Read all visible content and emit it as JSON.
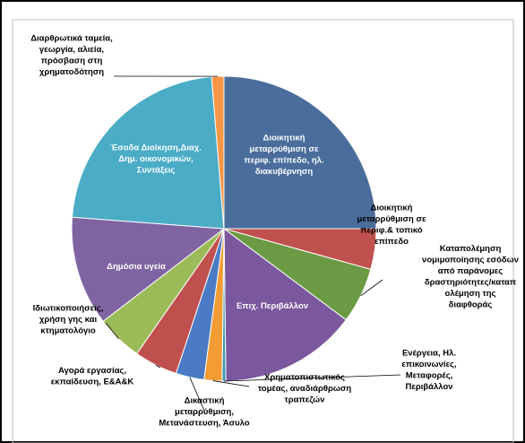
{
  "colors": {
    "background": "#ffffff",
    "frame": "#000000",
    "inner_border": "#bfbfbf",
    "slice_edge": "#ffffff",
    "leader": "#000000"
  },
  "chart_data": {
    "type": "pie",
    "start_angle_deg": 0,
    "direction": "clockwise",
    "grid": false,
    "legend": "none",
    "slices": [
      {
        "label": "Διοικητική μεταρρύθμιση σε περιφ. επίπεδο, ηλ. διακυβέρνηση",
        "value": 25.0,
        "color": "#4a6d9c"
      },
      {
        "label": "Διοικητική μεταρρύθμιση σε περιφ.& τοπικό επίπεδο",
        "value": 4.3,
        "color": "#c0504d"
      },
      {
        "label": "Καταπολέμηση νομιμοποίησης εσόδων από παράνομες δραστηριότητες/καταπολέμηση της διαφθοράς",
        "value": 5.9,
        "color": "#6b9a44"
      },
      {
        "label": "Επιχ. Περιβάλλον",
        "value": 14.6,
        "color": "#7b579e"
      },
      {
        "label": "Ενέργεια, Ηλ. επικοινωνίες, Μεταφορές, Περιβάλλον",
        "value": 0.4,
        "color": "#3b9bb0"
      },
      {
        "label": "Χρηματοπιστωτικός τομέας, αναδιάρθρωση τραπεζών",
        "value": 1.9,
        "color": "#f39c34"
      },
      {
        "label": "Δικαστική μεταρρύθμιση, Μετανάστευση, Άσυλο",
        "value": 3.0,
        "color": "#4a7bc4"
      },
      {
        "label": "Αγορά εργασίας, εκπαίδευση, Ε&Α&Κ",
        "value": 4.6,
        "color": "#c0504d"
      },
      {
        "label": "Ιδιωτικοποιήσεις, χρήση γης και κτηματολόγιο",
        "value": 4.9,
        "color": "#9bbb59"
      },
      {
        "label": "Δημόσια υγεία",
        "value": 11.6,
        "color": "#8064a2"
      },
      {
        "label": "Έσοδα Διοίκηση,Διαχ. Δημ. οικονομικών, Συντάξεις",
        "value": 22.5,
        "color": "#4bacc6"
      },
      {
        "label": "Διαρθρωτικά ταμεία, γεωργία, αλιεία, πρόσβαση στη χρηματοδότηση",
        "value": 1.3,
        "color": "#f79646"
      }
    ]
  }
}
